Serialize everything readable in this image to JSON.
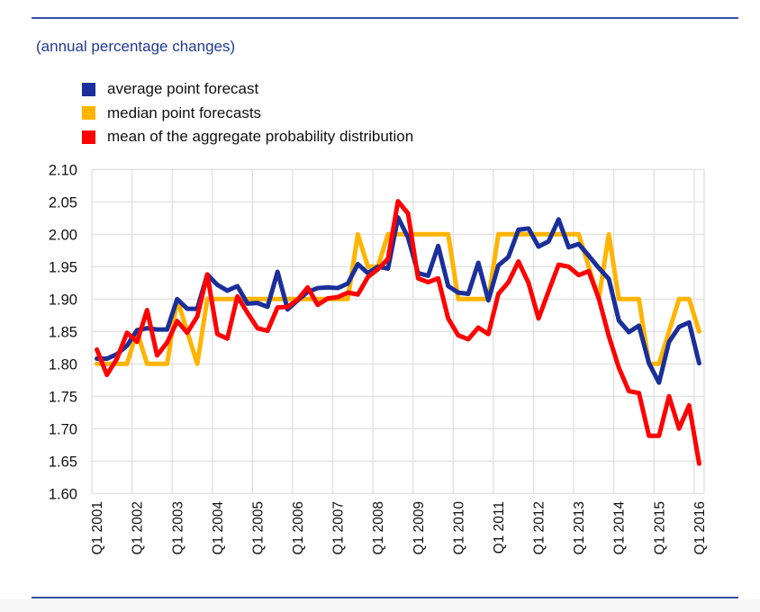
{
  "subtitle": "(annual percentage changes)",
  "legend": [
    {
      "label": "average point forecast",
      "color": "#1a2f99"
    },
    {
      "label": "median point forecasts",
      "color": "#ffb400"
    },
    {
      "label": "mean of the aggregate probability distribution",
      "color": "#ff0000"
    }
  ],
  "chart_data": {
    "type": "line",
    "title": "",
    "subtitle": "(annual percentage changes)",
    "xlabel": "",
    "ylabel": "",
    "ylim": [
      1.6,
      2.1
    ],
    "yticks": [
      "2.10",
      "2.05",
      "2.00",
      "1.95",
      "1.90",
      "1.85",
      "1.80",
      "1.75",
      "1.70",
      "1.65",
      "1.60"
    ],
    "ytick_values": [
      2.1,
      2.05,
      2.0,
      1.95,
      1.9,
      1.85,
      1.8,
      1.75,
      1.7,
      1.65,
      1.6
    ],
    "xtick_labels": [
      "Q1 2001",
      "Q1 2002",
      "Q1 2003",
      "Q1 2004",
      "Q1 2005",
      "Q1 2006",
      "Q1 2007",
      "Q1 2008",
      "Q1 2009",
      "Q1 2010",
      "Q1 2011",
      "Q1 2012",
      "Q1 2013",
      "Q1 2014",
      "Q1 2015",
      "Q1 2016"
    ],
    "x_start": "Q1 2001",
    "x_end": "Q1 2016",
    "x_frequency": "quarterly",
    "grid": true,
    "legend_position": "top-left",
    "series": [
      {
        "name": "average point forecast",
        "color": "#1a2f99",
        "values": [
          1.808,
          1.808,
          1.815,
          1.828,
          1.852,
          1.855,
          1.853,
          1.853,
          1.9,
          1.885,
          1.885,
          1.938,
          1.922,
          1.913,
          1.92,
          1.893,
          1.894,
          1.888,
          1.942,
          1.884,
          1.898,
          1.911,
          1.917,
          1.918,
          1.917,
          1.924,
          1.954,
          1.94,
          1.95,
          1.947,
          2.026,
          1.995,
          1.94,
          1.936,
          1.982,
          1.92,
          1.91,
          1.908,
          1.956,
          1.898,
          1.952,
          1.965,
          2.007,
          2.009,
          1.981,
          1.989,
          2.023,
          1.98,
          1.985,
          1.967,
          1.948,
          1.931,
          1.867,
          1.849,
          1.859,
          1.801,
          1.771,
          1.834,
          1.857,
          1.864,
          1.801
        ]
      },
      {
        "name": "median point forecasts",
        "color": "#ffb400",
        "values": [
          1.8,
          1.8,
          1.8,
          1.8,
          1.85,
          1.8,
          1.8,
          1.8,
          1.9,
          1.85,
          1.8,
          1.9,
          1.9,
          1.9,
          1.9,
          1.9,
          1.9,
          1.9,
          1.9,
          1.9,
          1.9,
          1.9,
          1.9,
          1.9,
          1.9,
          1.9,
          2.0,
          1.95,
          1.95,
          2.0,
          2.0,
          2.0,
          2.0,
          2.0,
          2.0,
          2.0,
          1.9,
          1.9,
          1.9,
          1.9,
          2.0,
          2.0,
          2.0,
          2.0,
          2.0,
          2.0,
          2.0,
          2.0,
          2.0,
          1.95,
          1.9,
          2.0,
          1.9,
          1.9,
          1.9,
          1.8,
          1.8,
          1.85,
          1.9,
          1.9,
          1.85
        ]
      },
      {
        "name": "mean of the aggregate probability distribution",
        "color": "#ff0000",
        "values": [
          1.822,
          1.783,
          1.808,
          1.848,
          1.834,
          1.883,
          1.813,
          1.833,
          1.866,
          1.848,
          1.873,
          1.938,
          1.846,
          1.839,
          1.904,
          1.879,
          1.855,
          1.851,
          1.887,
          1.888,
          1.899,
          1.918,
          1.891,
          1.901,
          1.903,
          1.91,
          1.907,
          1.934,
          1.946,
          1.962,
          2.051,
          2.032,
          1.932,
          1.926,
          1.932,
          1.87,
          1.844,
          1.838,
          1.856,
          1.846,
          1.908,
          1.926,
          1.958,
          1.925,
          1.87,
          1.912,
          1.953,
          1.95,
          1.937,
          1.943,
          1.901,
          1.843,
          1.794,
          1.758,
          1.755,
          1.689,
          1.689,
          1.75,
          1.7,
          1.736,
          1.646
        ]
      }
    ]
  }
}
